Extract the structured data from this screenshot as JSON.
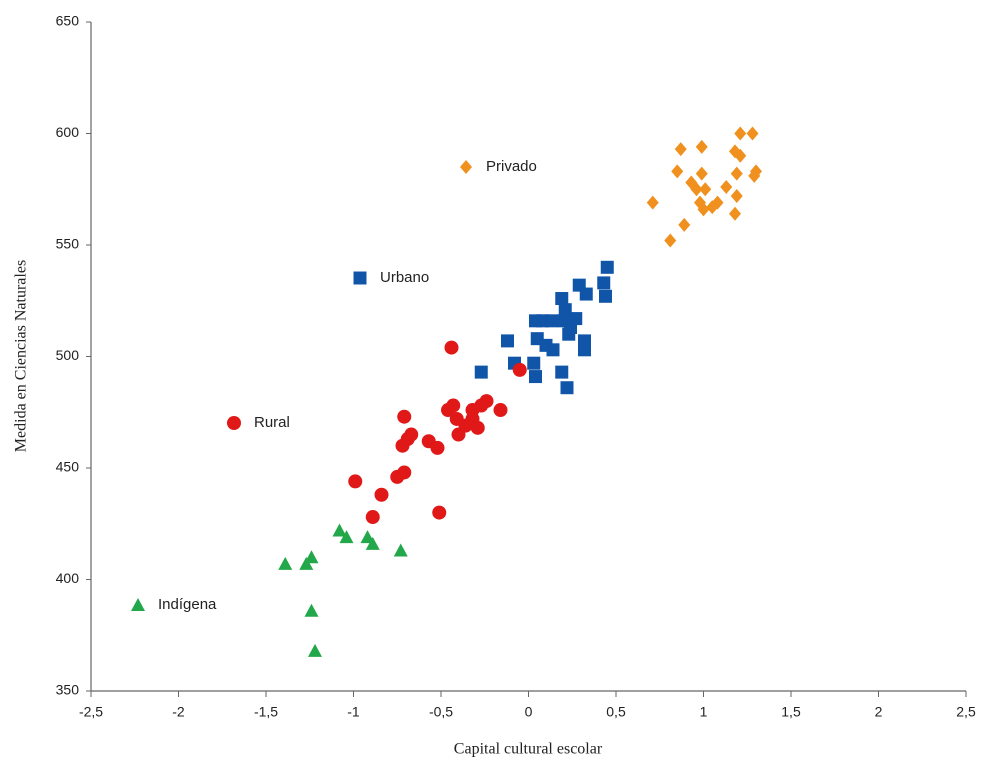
{
  "chart_data": {
    "type": "scatter",
    "x_label": "Capital cultural escolar",
    "y_label": "Medida en Ciencias Naturales",
    "xlim": [
      -2.5,
      2.5
    ],
    "xticks": [
      {
        "value": -2.5,
        "label": "-2,5"
      },
      {
        "value": -2,
        "label": "-2"
      },
      {
        "value": -1.5,
        "label": "-1,5"
      },
      {
        "value": -1,
        "label": "-1"
      },
      {
        "value": -0.5,
        "label": "-0,5"
      },
      {
        "value": 0,
        "label": "0"
      },
      {
        "value": 0.5,
        "label": "0,5"
      },
      {
        "value": 1,
        "label": "1"
      },
      {
        "value": 1.5,
        "label": "1,5"
      },
      {
        "value": 2,
        "label": "2"
      },
      {
        "value": 2.5,
        "label": "2,5"
      }
    ],
    "ylim": [
      350,
      650
    ],
    "yticks": [
      350,
      400,
      450,
      500,
      550,
      600,
      650
    ],
    "grid": false,
    "series": [
      {
        "name": "Privado",
        "color": "#f0901e",
        "marker": "diamond",
        "x": [
          1.21,
          1.28,
          0.87,
          0.99,
          1.18,
          1.21,
          1.3,
          1.29,
          1.19,
          0.85,
          0.93,
          0.99,
          0.96,
          1.01,
          1.13,
          1.19,
          0.98,
          1.08,
          1.05,
          1.0,
          1.18,
          0.71,
          0.89,
          0.81
        ],
        "values": [
          600,
          600,
          593,
          594,
          592,
          590,
          583,
          581,
          582,
          583,
          578,
          582,
          575,
          575,
          576,
          572,
          569,
          569,
          567,
          566,
          564,
          569,
          559,
          552
        ]
      },
      {
        "name": "Urbano",
        "color": "#1155a8",
        "marker": "square",
        "x": [
          0.45,
          0.43,
          0.44,
          0.29,
          0.33,
          0.19,
          0.21,
          0.13,
          0.08,
          0.04,
          0.27,
          0.32,
          0.32,
          0.23,
          0.05,
          0.1,
          0.14,
          -0.12,
          -0.08,
          0.03,
          0.04,
          -0.27,
          0.19,
          0.22,
          0.2,
          0.24
        ],
        "values": [
          540,
          533,
          527,
          532,
          528,
          526,
          521,
          516,
          516,
          516,
          517,
          507,
          503,
          510,
          508,
          505,
          503,
          507,
          497,
          497,
          491,
          493,
          493,
          486,
          516,
          513
        ]
      },
      {
        "name": "Rural",
        "color": "#e01818",
        "marker": "circle",
        "x": [
          -0.44,
          -0.99,
          -0.84,
          -0.89,
          -0.51,
          -0.75,
          -0.71,
          -0.71,
          -0.72,
          -0.69,
          -0.67,
          -0.57,
          -0.52,
          -0.46,
          -0.43,
          -0.41,
          -0.4,
          -0.36,
          -0.32,
          -0.32,
          -0.29,
          -0.27,
          -0.24,
          -0.16,
          -0.05
        ],
        "values": [
          504,
          444,
          438,
          428,
          430,
          446,
          448,
          473,
          460,
          463,
          465,
          462,
          459,
          476,
          478,
          472,
          465,
          469,
          472,
          476,
          468,
          478,
          480,
          476,
          494
        ]
      },
      {
        "name": "Indígena",
        "color": "#22a84a",
        "marker": "triangle",
        "x": [
          -1.39,
          -1.27,
          -1.24,
          -1.08,
          -1.04,
          -0.92,
          -0.89,
          -0.73,
          -1.24,
          -1.22
        ],
        "values": [
          407,
          407,
          410,
          422,
          419,
          419,
          416,
          413,
          386,
          368
        ]
      }
    ]
  }
}
